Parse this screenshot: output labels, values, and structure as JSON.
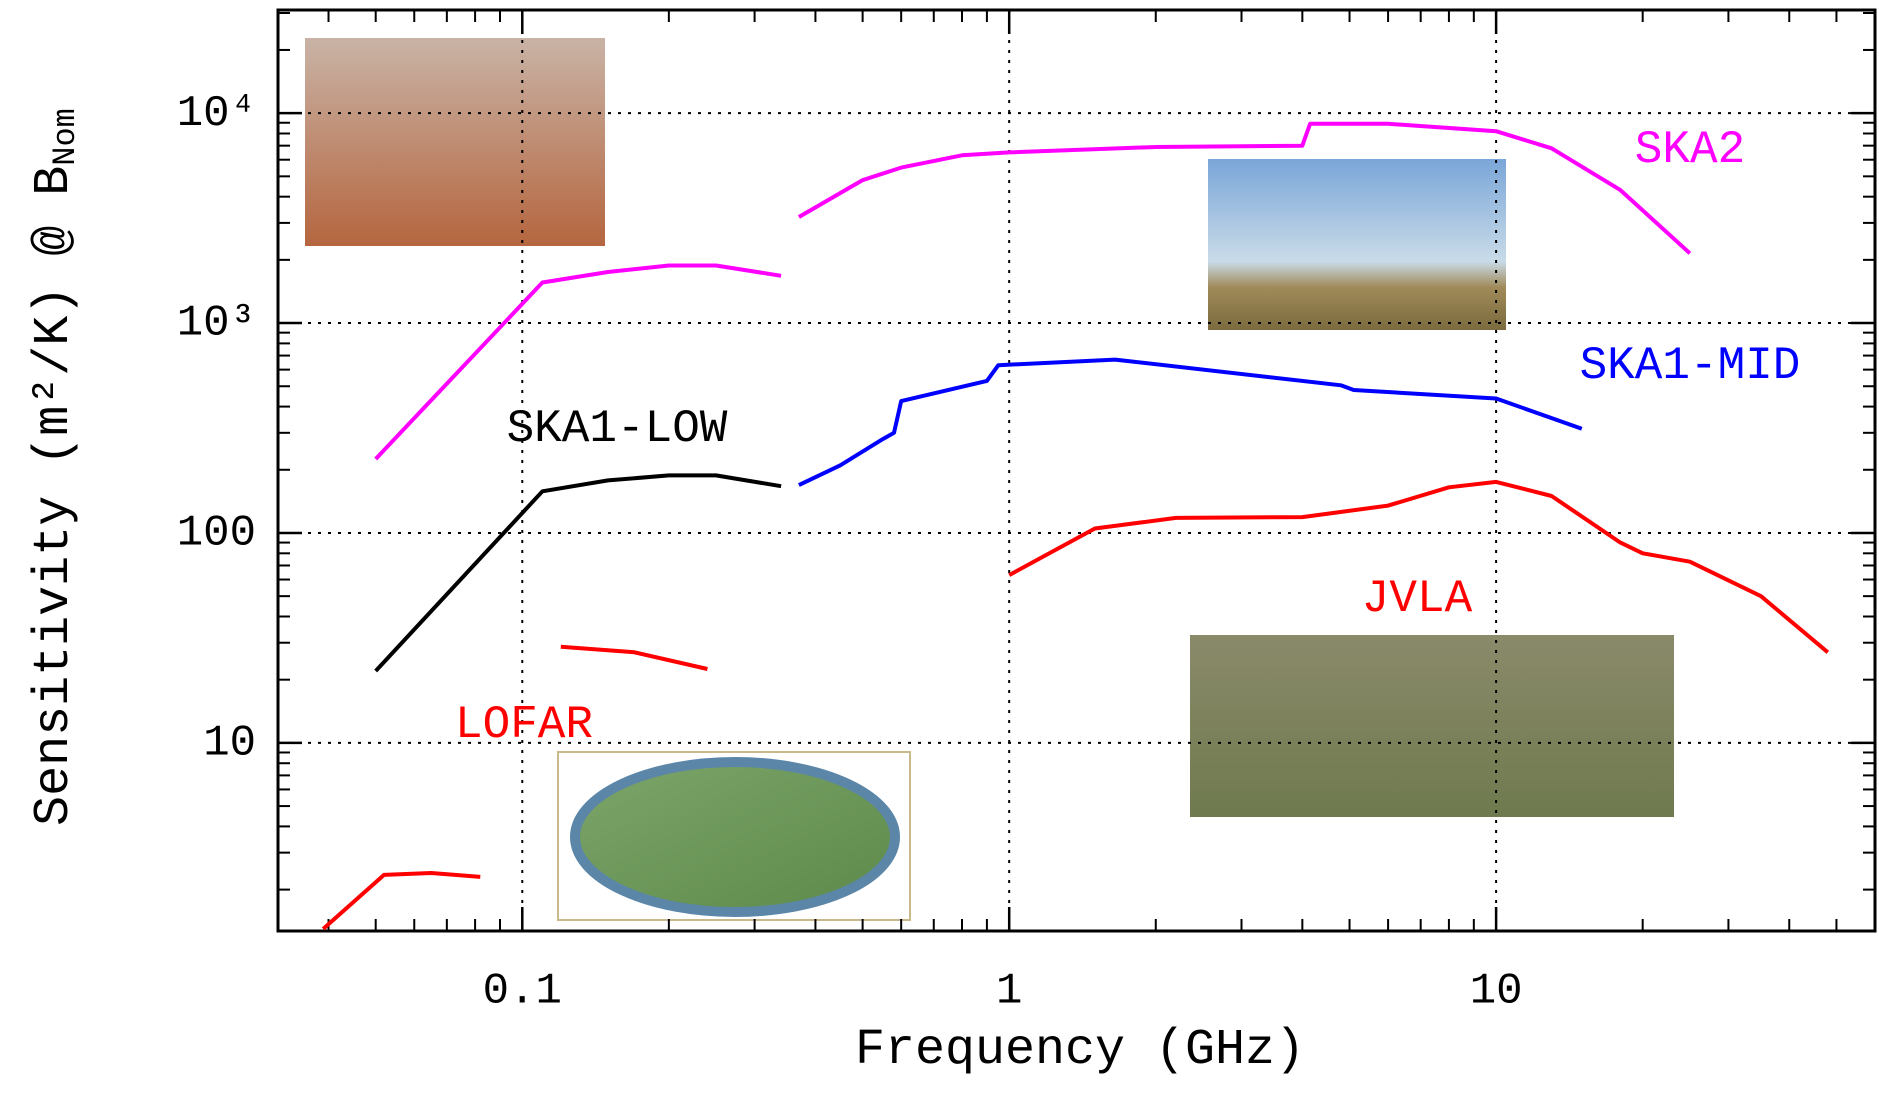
{
  "chart_data": {
    "type": "line",
    "xlabel": "Frequency (GHz)",
    "ylabel": "Sensitivity (m²/K) @ B",
    "ylabel_subscript": "Nom",
    "xlog": true,
    "ylog": true,
    "grid": true,
    "xlim": [
      0.0315,
      60
    ],
    "ylim": [
      1.27,
      31000
    ],
    "xticks": [
      0.1,
      1,
      10
    ],
    "yticks": [
      10,
      100,
      {
        "value": 1000,
        "label": "10³"
      },
      {
        "value": 10000,
        "label": "10⁴"
      }
    ],
    "series": [
      {
        "name": "SKA2",
        "color": "#ff00ff",
        "x": [
          0.05,
          0.11,
          0.15,
          0.2,
          0.25,
          0.34,
          null,
          0.37,
          0.5,
          0.6,
          0.8,
          1,
          2,
          4,
          4.15,
          6,
          10,
          13,
          18,
          25
        ],
        "values": [
          225,
          1560,
          1750,
          1880,
          1880,
          1680,
          null,
          3200,
          4800,
          5500,
          6300,
          6500,
          6900,
          7000,
          8900,
          8900,
          8200,
          6800,
          4300,
          2150
        ]
      },
      {
        "name": "SKA1-LOW",
        "color": "#000000",
        "x": [
          0.05,
          0.11,
          0.15,
          0.2,
          0.25,
          0.34
        ],
        "values": [
          22,
          158,
          178,
          188,
          188,
          167
        ]
      },
      {
        "name": "SKA1-MID",
        "color": "#0000ff",
        "x": [
          0.37,
          0.45,
          0.55,
          0.58,
          0.6,
          0.9,
          0.95,
          1.65,
          4.8,
          5.1,
          10,
          15
        ],
        "values": [
          169,
          210,
          280,
          300,
          425,
          530,
          630,
          670,
          505,
          480,
          437,
          314
        ]
      },
      {
        "name": "JVLA",
        "color": "#ff0000",
        "x": [
          1,
          1.5,
          2.2,
          4,
          6,
          8,
          10,
          13,
          18,
          20,
          25,
          35,
          48
        ],
        "values": [
          63,
          105,
          118,
          119,
          135,
          165,
          175,
          150,
          90,
          80,
          73,
          50,
          27
        ]
      },
      {
        "name": "LOFAR",
        "color": "#ff0000",
        "x": [
          0.039,
          0.052,
          0.065,
          0.082,
          null,
          0.12,
          0.17,
          0.24
        ],
        "values": [
          1.3,
          2.35,
          2.4,
          2.3,
          null,
          28.7,
          27,
          22.5
        ]
      }
    ]
  }
}
